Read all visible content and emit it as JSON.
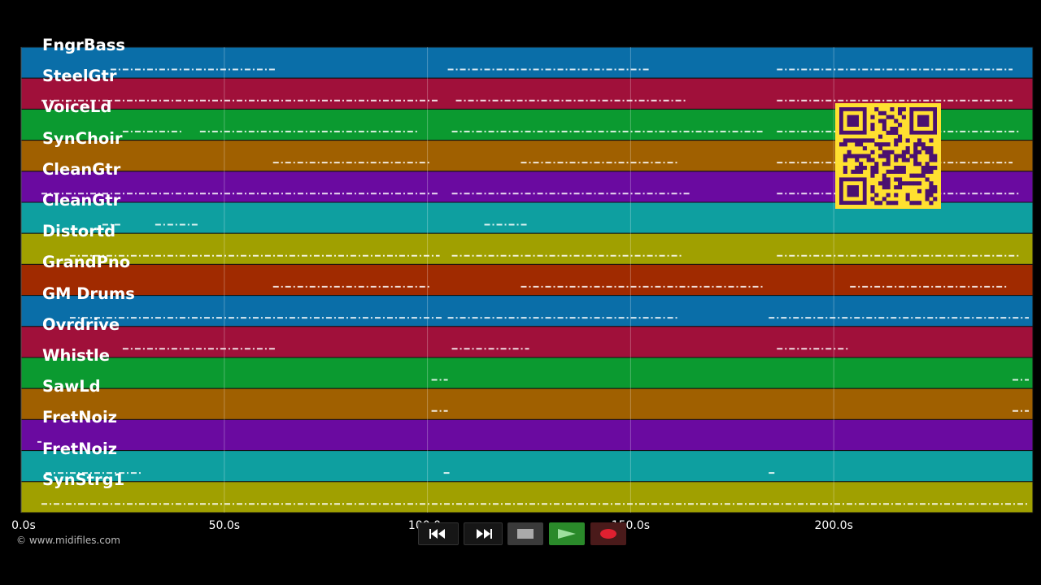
{
  "chart_data": {
    "type": "piano-roll",
    "x_unit": "s",
    "xlim": [
      0,
      249
    ],
    "x_ticks": [
      0,
      50,
      100,
      150,
      200
    ],
    "x_tick_labels": [
      "0.0s",
      "50.0s",
      "100.0s",
      "150.0s",
      "200.0s"
    ],
    "tracks": [
      {
        "name": "FngrBass",
        "color": "#0a6ea8",
        "segments": [
          [
            22,
            63
          ],
          [
            105,
            155
          ],
          [
            186,
            244
          ]
        ]
      },
      {
        "name": "SteelGtr",
        "color": "#a0103a",
        "segments": [
          [
            5,
            103
          ],
          [
            107,
            164
          ],
          [
            186,
            244
          ]
        ]
      },
      {
        "name": "VoiceLd",
        "color": "#0b9a30",
        "segments": [
          [
            25,
            40
          ],
          [
            44,
            98
          ],
          [
            106,
            183
          ],
          [
            186,
            246
          ]
        ]
      },
      {
        "name": "SynChoir",
        "color": "#a06000",
        "segments": [
          [
            62,
            101
          ],
          [
            123,
            162
          ],
          [
            186,
            244
          ]
        ]
      },
      {
        "name": "CleanGtr",
        "color": "#6a0aa0",
        "segments": [
          [
            5,
            103
          ],
          [
            106,
            165
          ],
          [
            186,
            246
          ]
        ]
      },
      {
        "name": "CleanGtr",
        "color": "#0e9fa0",
        "segments": [
          [
            20,
            25
          ],
          [
            33,
            44
          ],
          [
            114,
            125
          ]
        ]
      },
      {
        "name": "Distortd",
        "color": "#a0a000",
        "segments": [
          [
            12,
            103
          ],
          [
            106,
            163
          ],
          [
            186,
            246
          ]
        ]
      },
      {
        "name": "GrandPno",
        "color": "#a02a00",
        "segments": [
          [
            62,
            101
          ],
          [
            123,
            183
          ],
          [
            204,
            243
          ]
        ]
      },
      {
        "name": "GM Drums",
        "color": "#0a6ea8",
        "segments": [
          [
            12,
            104
          ],
          [
            105,
            162
          ],
          [
            184,
            248
          ]
        ]
      },
      {
        "name": "Ovrdrive",
        "color": "#a0103a",
        "segments": [
          [
            25,
            63
          ],
          [
            106,
            125
          ],
          [
            186,
            204
          ]
        ]
      },
      {
        "name": "Whistle",
        "color": "#0b9a30",
        "segments": [
          [
            101,
            105
          ],
          [
            244,
            248
          ]
        ]
      },
      {
        "name": "SawLd",
        "color": "#a06000",
        "segments": [
          [
            101,
            105
          ],
          [
            244,
            248
          ]
        ]
      },
      {
        "name": "FretNoiz",
        "color": "#6a0aa0",
        "segments": [
          [
            4,
            5
          ]
        ]
      },
      {
        "name": "FretNoiz",
        "color": "#0e9fa0",
        "segments": [
          [
            6,
            30
          ],
          [
            104,
            106
          ],
          [
            184,
            186
          ]
        ]
      },
      {
        "name": "SynStrg1",
        "color": "#a0a000",
        "segments": [
          [
            5,
            248
          ]
        ]
      }
    ]
  },
  "footer": {
    "copyright": "© www.midifiles.com"
  },
  "transport": {
    "rewind_icon": "rewind-icon",
    "forward_icon": "fast-forward-icon",
    "stop_icon": "stop-icon",
    "play_icon": "play-icon",
    "record_icon": "record-icon",
    "play_color": "#2a8a2a",
    "record_color": "#e02030"
  },
  "overlay": {
    "qr_icon": "qr-code-icon",
    "qr_background": "#ffe030",
    "qr_foreground": "#4a1070"
  }
}
